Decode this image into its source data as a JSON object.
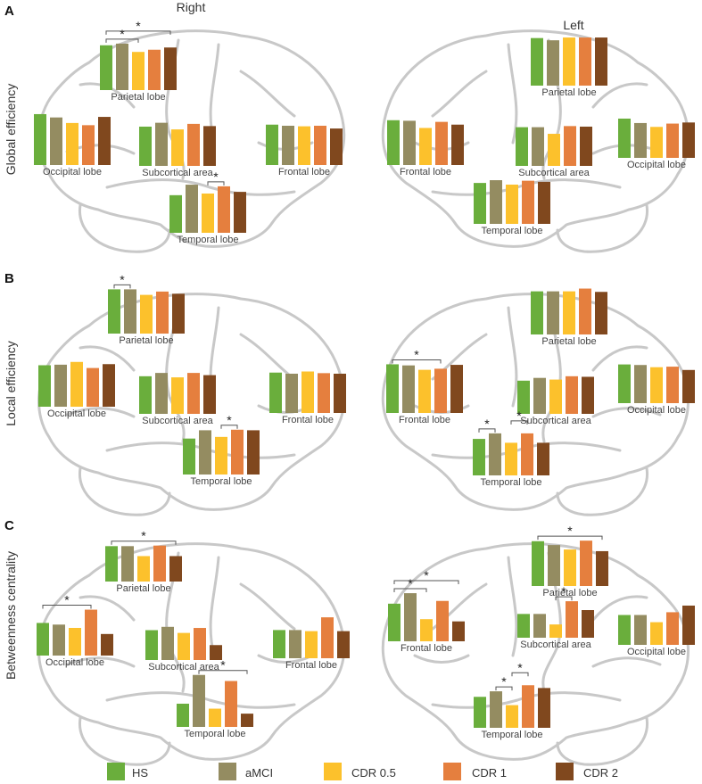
{
  "column_headers": {
    "right": "Right",
    "left": "Left"
  },
  "legend": [
    {
      "label": "HS",
      "color": "#6aae3c"
    },
    {
      "label": "aMCI",
      "color": "#948c61"
    },
    {
      "label": "CDR 0.5",
      "color": "#fcc12c"
    },
    {
      "label": "CDR 1",
      "color": "#e57f3e"
    },
    {
      "label": "CDR 2",
      "color": "#80481e"
    }
  ],
  "colors": {
    "brain_outline": "#c8c8c8",
    "bracket": "#555555"
  },
  "panels": [
    {
      "letter": "A",
      "measure": "Global efficiency",
      "right": [
        {
          "region": "Parietal lobe",
          "values": [
            0.81,
            0.84,
            0.69,
            0.73,
            0.77
          ],
          "stars": [
            {
              "groups": [
                0,
                2
              ]
            },
            {
              "groups": [
                0,
                4
              ]
            }
          ]
        },
        {
          "region": "Occipital lobe",
          "values": [
            0.92,
            0.86,
            0.76,
            0.72,
            0.87
          ],
          "stars": []
        },
        {
          "region": "Subcortical area",
          "values": [
            0.71,
            0.78,
            0.66,
            0.76,
            0.72
          ],
          "stars": []
        },
        {
          "region": "Frontal lobe",
          "values": [
            0.73,
            0.71,
            0.7,
            0.71,
            0.66
          ],
          "stars": []
        },
        {
          "region": "Temporal lobe",
          "values": [
            0.68,
            0.87,
            0.71,
            0.84,
            0.74
          ],
          "stars": [
            {
              "groups": [
                2,
                3
              ]
            }
          ]
        }
      ],
      "left": [
        {
          "region": "Parietal lobe",
          "values": [
            0.86,
            0.82,
            0.87,
            0.87,
            0.87
          ],
          "stars": []
        },
        {
          "region": "Frontal lobe",
          "values": [
            0.81,
            0.8,
            0.67,
            0.78,
            0.73
          ],
          "stars": []
        },
        {
          "region": "Subcortical area",
          "values": [
            0.7,
            0.7,
            0.58,
            0.72,
            0.71
          ],
          "stars": []
        },
        {
          "region": "Occipital lobe",
          "values": [
            0.71,
            0.63,
            0.56,
            0.62,
            0.64
          ],
          "stars": []
        },
        {
          "region": "Temporal lobe",
          "values": [
            0.74,
            0.79,
            0.71,
            0.78,
            0.76
          ],
          "stars": []
        }
      ]
    },
    {
      "letter": "B",
      "measure": "Local efficiency",
      "right": [
        {
          "region": "Parietal lobe",
          "values": [
            0.8,
            0.8,
            0.7,
            0.76,
            0.72
          ],
          "stars": [
            {
              "groups": [
                0,
                1
              ]
            }
          ]
        },
        {
          "region": "Occipital lobe",
          "values": [
            0.75,
            0.76,
            0.81,
            0.7,
            0.77
          ],
          "stars": []
        },
        {
          "region": "Subcortical area",
          "values": [
            0.68,
            0.74,
            0.66,
            0.74,
            0.7
          ],
          "stars": []
        },
        {
          "region": "Frontal lobe",
          "values": [
            0.73,
            0.71,
            0.75,
            0.72,
            0.71
          ],
          "stars": []
        },
        {
          "region": "Temporal lobe",
          "values": [
            0.65,
            0.8,
            0.68,
            0.81,
            0.8
          ],
          "stars": [
            {
              "groups": [
                2,
                3
              ]
            }
          ]
        }
      ],
      "left": [
        {
          "region": "Parietal lobe",
          "values": [
            0.78,
            0.78,
            0.78,
            0.83,
            0.77
          ],
          "stars": []
        },
        {
          "region": "Frontal lobe",
          "values": [
            0.88,
            0.86,
            0.78,
            0.8,
            0.87
          ],
          "stars": [
            {
              "groups": [
                0,
                3
              ]
            }
          ]
        },
        {
          "region": "Subcortical area",
          "values": [
            0.6,
            0.65,
            0.62,
            0.68,
            0.67
          ],
          "stars": []
        },
        {
          "region": "Occipital lobe",
          "values": [
            0.7,
            0.69,
            0.65,
            0.66,
            0.6
          ],
          "stars": []
        },
        {
          "region": "Temporal lobe",
          "values": [
            0.66,
            0.76,
            0.59,
            0.76,
            0.59
          ],
          "stars": [
            {
              "groups": [
                0,
                1
              ]
            },
            {
              "groups": [
                2,
                3
              ]
            }
          ]
        }
      ]
    },
    {
      "letter": "C",
      "measure": "Betweenness centrality",
      "right": [
        {
          "region": "Parietal lobe",
          "values": [
            0.64,
            0.64,
            0.46,
            0.65,
            0.46
          ],
          "stars": [
            {
              "groups": [
                0,
                4
              ]
            }
          ]
        },
        {
          "region": "Occipital lobe",
          "values": [
            0.59,
            0.56,
            0.5,
            0.83,
            0.39
          ],
          "stars": [
            {
              "groups": [
                0,
                3
              ]
            }
          ]
        },
        {
          "region": "Subcortical area",
          "values": [
            0.54,
            0.6,
            0.49,
            0.58,
            0.27
          ],
          "stars": []
        },
        {
          "region": "Frontal lobe",
          "values": [
            0.51,
            0.51,
            0.49,
            0.74,
            0.49
          ],
          "stars": []
        },
        {
          "region": "Temporal lobe",
          "values": [
            0.42,
            0.94,
            0.33,
            0.83,
            0.24
          ],
          "stars": [
            {
              "groups": [
                1,
                4
              ]
            }
          ]
        }
      ],
      "left": [
        {
          "region": "Parietal lobe",
          "values": [
            0.81,
            0.74,
            0.66,
            0.82,
            0.63
          ],
          "stars": [
            {
              "groups": [
                0,
                4
              ]
            }
          ]
        },
        {
          "region": "Frontal lobe",
          "values": [
            0.68,
            0.87,
            0.4,
            0.73,
            0.36
          ],
          "stars": [
            {
              "groups": [
                0,
                2
              ]
            },
            {
              "groups": [
                0,
                4
              ]
            }
          ]
        },
        {
          "region": "Subcortical area",
          "values": [
            0.43,
            0.43,
            0.24,
            0.66,
            0.5
          ],
          "stars": [
            {
              "groups": [
                2,
                3
              ]
            }
          ]
        },
        {
          "region": "Occipital lobe",
          "values": [
            0.54,
            0.54,
            0.41,
            0.59,
            0.71
          ],
          "stars": []
        },
        {
          "region": "Temporal lobe",
          "values": [
            0.56,
            0.66,
            0.41,
            0.77,
            0.72
          ],
          "stars": [
            {
              "groups": [
                1,
                2
              ]
            },
            {
              "groups": [
                2,
                3
              ]
            }
          ]
        }
      ]
    }
  ]
}
